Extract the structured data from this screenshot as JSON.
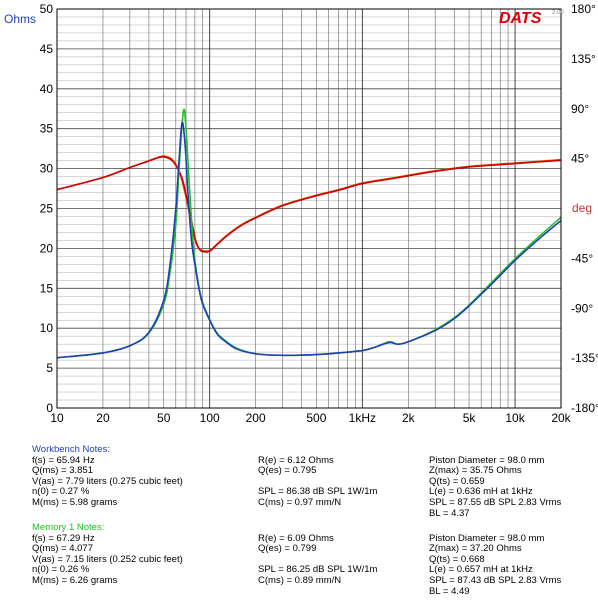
{
  "chart_data": {
    "type": "line",
    "left_axis": {
      "unit": "Ohms",
      "range": [
        0,
        50
      ],
      "ticks": [
        "0",
        "5",
        "10",
        "15",
        "20",
        "25",
        "30",
        "35",
        "40",
        "45",
        "50"
      ]
    },
    "right_axis": {
      "unit": "deg",
      "range": [
        -180,
        180
      ],
      "ticks": [
        "180°",
        "135°",
        "90°",
        "45°",
        "-45°",
        "-90°",
        "-135°",
        "-180°"
      ],
      "tick_values": [
        180,
        135,
        90,
        45,
        -45,
        -90,
        -135,
        -180
      ]
    },
    "x_axis": {
      "scale": "log",
      "range": [
        10,
        20000
      ],
      "tick_labels": [
        "10",
        "20",
        "50",
        "100",
        "200",
        "500",
        "1kHz",
        "2k",
        "5k",
        "10k",
        "20k"
      ],
      "tick_values": [
        10,
        20,
        50,
        100,
        200,
        500,
        1000,
        2000,
        5000,
        10000,
        20000
      ]
    },
    "grid": true,
    "series": [
      {
        "color": "#1f3fb8",
        "axis": "left",
        "x": [
          10,
          20,
          30,
          40,
          50,
          55,
          60,
          63,
          65.94,
          69,
          72,
          76,
          80,
          85,
          90,
          100,
          110,
          120,
          150,
          200,
          300,
          500,
          700,
          1000,
          1200,
          1500,
          1700,
          2000,
          3000,
          4000,
          5000,
          7000,
          10000,
          15000,
          20000
        ],
        "y": [
          6.3,
          6.9,
          7.8,
          9.5,
          13.5,
          18,
          25,
          31,
          35.75,
          33,
          27,
          21,
          18,
          15,
          13,
          11,
          9.5,
          8.7,
          7.4,
          6.8,
          6.6,
          6.7,
          6.9,
          7.2,
          7.6,
          8.2,
          8.0,
          8.3,
          9.7,
          11.2,
          12.8,
          15.5,
          18.5,
          21.5,
          23.5
        ]
      },
      {
        "color": "#22c022",
        "axis": "left",
        "x": [
          10,
          20,
          30,
          40,
          50,
          55,
          60,
          63,
          67.29,
          70,
          73,
          77,
          80,
          85,
          90,
          100,
          110,
          120,
          150,
          200,
          300,
          500,
          700,
          1000,
          1200,
          1500,
          1700,
          2000,
          3000,
          4000,
          5000,
          7000,
          10000,
          15000,
          20000
        ],
        "y": [
          6.3,
          6.9,
          7.8,
          9.4,
          13,
          17,
          23,
          30,
          37.2,
          35,
          29,
          22,
          18.5,
          15.2,
          13.2,
          11.1,
          9.6,
          8.8,
          7.5,
          6.8,
          6.6,
          6.7,
          6.9,
          7.2,
          7.6,
          8.3,
          8.0,
          8.3,
          9.8,
          11.3,
          12.9,
          15.7,
          18.7,
          21.8,
          23.9
        ]
      },
      {
        "color": "#d05a00",
        "axis": "right",
        "x": [
          10,
          20,
          30,
          40,
          48,
          52,
          56,
          60,
          65,
          70,
          75,
          80,
          85,
          90,
          100,
          110,
          130,
          160,
          200,
          300,
          500,
          700,
          1000,
          1500,
          2000,
          3000,
          5000,
          10000,
          20000
        ],
        "y": [
          17,
          28,
          37,
          43,
          47,
          47,
          45,
          40,
          28,
          10,
          -10,
          -28,
          -36,
          -38,
          -38,
          -33,
          -24,
          -15,
          -8,
          3,
          12,
          17,
          23,
          27,
          30,
          34,
          38,
          41,
          44
        ]
      },
      {
        "color": "#d00000",
        "axis": "right",
        "x": [
          10,
          20,
          30,
          40,
          48,
          52,
          56,
          60,
          66,
          71,
          76,
          81,
          86,
          91,
          100,
          110,
          130,
          160,
          200,
          300,
          500,
          700,
          1000,
          1500,
          2000,
          3000,
          5000,
          10000,
          20000
        ],
        "y": [
          17,
          28,
          37,
          43,
          46.5,
          46,
          44,
          39,
          27,
          9,
          -11,
          -29,
          -37,
          -39,
          -38.5,
          -33.5,
          -24.5,
          -15.5,
          -8.5,
          2.5,
          11.5,
          16.5,
          22.5,
          26.5,
          29.5,
          33.5,
          37.5,
          40.5,
          43.5
        ]
      }
    ]
  },
  "logo": {
    "text": "DATS",
    "sub": "2.00"
  },
  "workbench": {
    "title": "Workbench Notes:",
    "col1": [
      "f(s) = 65.94 Hz",
      "Q(ms) = 3.851",
      "V(as) = 7.79 liters  (0.275 cubic feet)",
      "n(0) = 0.27 %",
      "M(ms) = 5.98 grams"
    ],
    "col2": [
      "R(e) = 6.12 Ohms",
      "Q(es) = 0.795",
      "",
      "SPL = 86.38 dB SPL 1W/1m",
      "C(ms) = 0.97 mm/N"
    ],
    "col3": [
      "Piston Diameter = 98.0 mm",
      "Z(max) = 35.75 Ohms",
      "Q(ts) = 0.659",
      "L(e) = 0.636 mH at 1kHz",
      "SPL = 87.55 dB SPL 2.83 Vrms",
      "BL = 4.37"
    ]
  },
  "memory1": {
    "title": "Memory 1 Notes:",
    "col1": [
      "f(s) = 67.29 Hz",
      "Q(ms) = 4.077",
      "V(as) = 7.15 liters  (0.252 cubic feet)",
      "n(0) = 0.26 %",
      "M(ms) = 6.26 grams"
    ],
    "col2": [
      "R(e) = 6.09 Ohms",
      "Q(es) = 0.799",
      "",
      "SPL = 86.25 dB SPL 1W/1m",
      "C(ms) = 0.89 mm/N"
    ],
    "col3": [
      "Piston Diameter = 98.0 mm",
      "Z(max) = 37.20 Ohms",
      "Q(ts) = 0.668",
      "L(e) = 0.657 mH at 1kHz",
      "SPL = 87.43 dB SPL 2.83 Vrms",
      "BL = 4.49"
    ]
  }
}
